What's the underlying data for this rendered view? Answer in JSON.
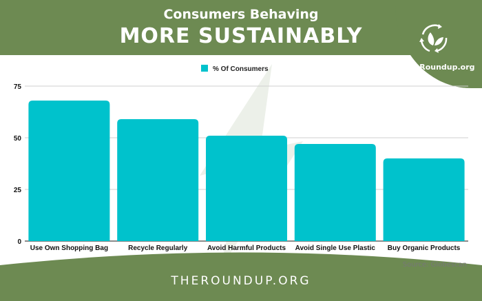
{
  "header": {
    "title_line1": "Consumers Behaving",
    "title_line2": "MORE SUSTAINABLY",
    "logo_text": "TheRoundup.org",
    "logo_icon": "recycle-leaf-icon"
  },
  "footer": {
    "site": "THEROUNDUP.ORG",
    "source": "Source: Globescan"
  },
  "colors": {
    "brand_green": "#6d8a52",
    "bar": "#00c2cc"
  },
  "chart_data": {
    "type": "bar",
    "categories": [
      "Use Own Shopping Bag",
      "Recycle Regularly",
      "Avoid Harmful Products",
      "Avoid Single Use Plastic",
      "Buy Organic Products"
    ],
    "series": [
      {
        "name": "% Of Consumers",
        "values": [
          68,
          59,
          51,
          47,
          40
        ]
      }
    ],
    "ylim": [
      0,
      75
    ],
    "yticks": [
      0,
      25,
      50,
      75
    ],
    "grid": true,
    "legend": "top-center",
    "xlabel": "",
    "ylabel": ""
  }
}
